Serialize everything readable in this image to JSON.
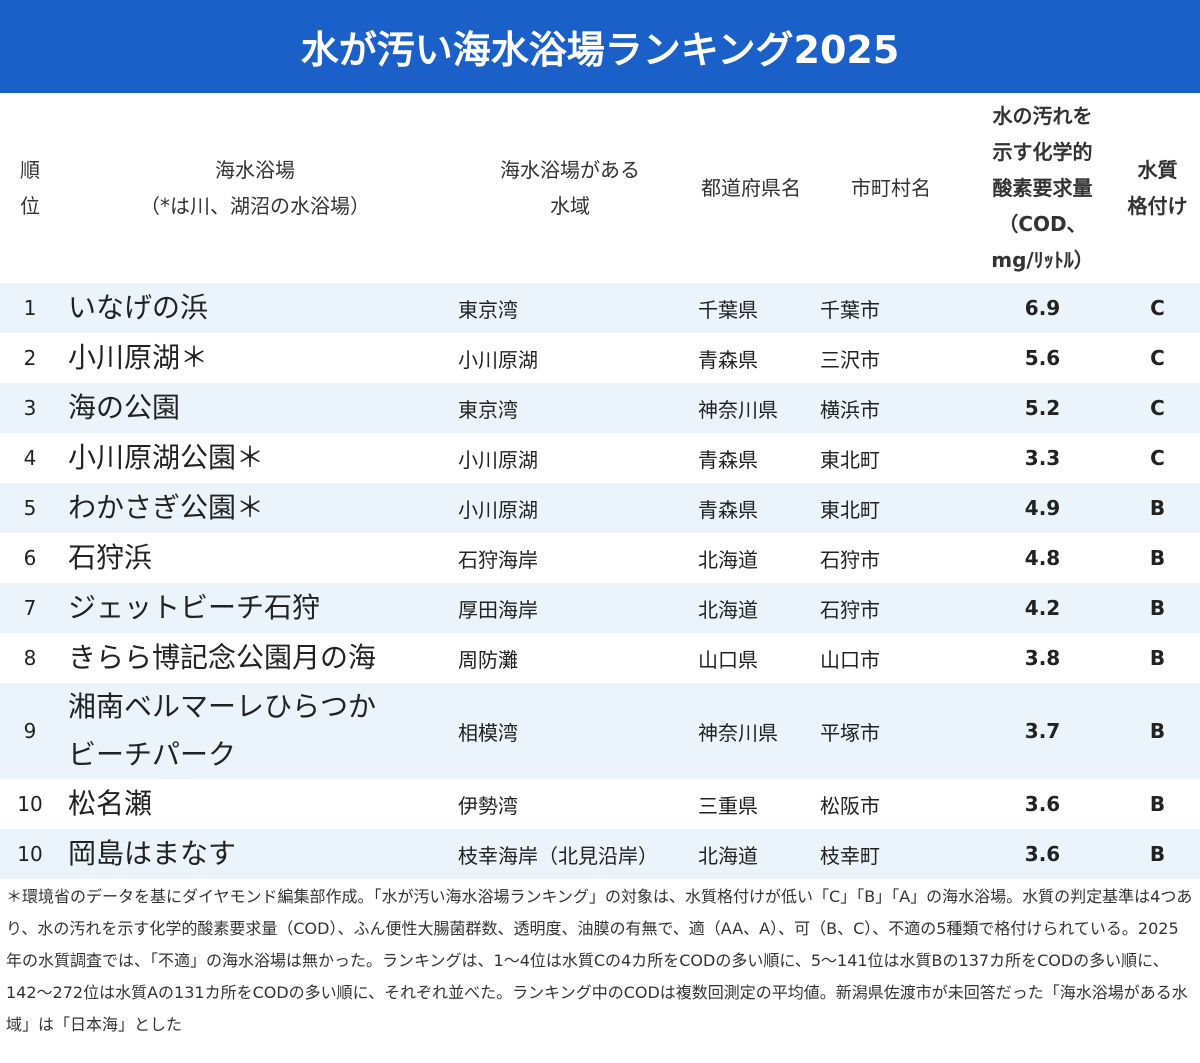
{
  "header": {
    "title": "水が汚い海水浴場ランキング2025"
  },
  "table": {
    "columns": [
      "順\n位",
      "海水浴場\n（*は川、湖沼の水浴場）",
      "海水浴場がある\n水域",
      "都道府県名",
      "市町村名",
      "水の汚れを\n示す化学的\n酸素要求量\n（COD、\nmg/ﾘｯﾄﾙ）",
      "水質\n格付け"
    ],
    "rows": [
      [
        "1",
        "いなげの浜",
        "東京湾",
        "千葉県",
        "千葉市",
        "6.9",
        "C"
      ],
      [
        "2",
        "小川原湖＊",
        "小川原湖",
        "青森県",
        "三沢市",
        "5.6",
        "C"
      ],
      [
        "3",
        "海の公園",
        "東京湾",
        "神奈川県",
        "横浜市",
        "5.2",
        "C"
      ],
      [
        "4",
        "小川原湖公園＊",
        "小川原湖",
        "青森県",
        "東北町",
        "3.3",
        "C"
      ],
      [
        "5",
        "わかさぎ公園＊",
        "小川原湖",
        "青森県",
        "東北町",
        "4.9",
        "B"
      ],
      [
        "6",
        "石狩浜",
        "石狩海岸",
        "北海道",
        "石狩市",
        "4.8",
        "B"
      ],
      [
        "7",
        "ジェットビーチ石狩",
        "厚田海岸",
        "北海道",
        "石狩市",
        "4.2",
        "B"
      ],
      [
        "8",
        "きらら博記念公園月の海",
        "周防灘",
        "山口県",
        "山口市",
        "3.8",
        "B"
      ],
      [
        "9",
        "湘南ベルマーレひらつか\nビーチパーク",
        "相模湾",
        "神奈川県",
        "平塚市",
        "3.7",
        "B"
      ],
      [
        "10",
        "松名瀬",
        "伊勢湾",
        "三重県",
        "松阪市",
        "3.6",
        "B"
      ],
      [
        "10",
        "岡島はまなす",
        "枝幸海岸（北見沿岸）",
        "北海道",
        "枝幸町",
        "3.6",
        "B"
      ]
    ]
  },
  "footer": {
    "note": "＊環境省のデータを基にダイヤモンド編集部作成。「水が汚い海水浴場ランキング」の対象は、水質格付けが低い「C」「B」「A」の海水浴場。水質の判定基準は4つあり、水の汚れを示す化学的酸素要求量（COD）、ふん便性大腸菌群数、透明度、油膜の有無で、適（AA、A）、可（B、C）、不適の5種類で格付けられている。2025年の水質調査では、「不適」の海水浴場は無かった。ランキングは、1〜4位は水質Cの4カ所をCODの多い順に、5〜141位は水質Bの137カ所をCODの多い順に、142〜272位は水質Aの131カ所をCODの多い順に、それぞれ並べた。ランキング中のCODは複数回測定の平均値。新潟県佐渡市が未回答だった「海水浴場がある水域」は「日本海」とした"
  }
}
